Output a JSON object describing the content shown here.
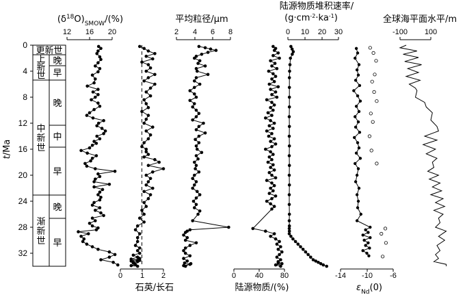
{
  "chart_data": [
    {
      "type": "line",
      "id": "oxygen_isotope",
      "xlabel": "(δ18O)SMOW/(%)",
      "xticks": [
        "12",
        "16",
        "20"
      ],
      "xlim": [
        12,
        22
      ],
      "x": [
        17.6,
        18,
        17.5,
        17.3,
        17.8,
        18,
        17.5,
        17,
        17.8,
        17.5,
        16.5,
        17,
        16.8,
        15.6,
        17.5,
        16.6,
        17.5,
        17,
        16.3,
        17.5,
        17.8,
        16.8,
        16,
        15.5,
        16.6,
        18.5,
        17.6,
        17.3,
        18.2,
        18.8,
        18.5,
        17.3,
        17.8,
        16.8,
        17.2,
        16.5,
        16,
        14.5,
        15.6,
        17.2,
        16.5,
        16.2,
        15.2,
        15.5,
        17,
        20.5,
        17.5,
        17.8,
        17,
        16.8,
        19.5,
        16.8,
        18.3,
        17.8,
        17.5,
        18,
        17.8,
        16.8,
        16.5,
        17.8,
        17,
        18,
        18.5,
        16.5,
        17,
        16,
        16.5,
        17.5,
        17.2,
        14,
        15.8,
        14.5,
        15,
        14.8,
        15.5,
        16.5,
        17.5,
        19.5,
        20.5,
        19.5,
        18,
        20.2,
        21
      ],
      "y": [
        0.2,
        0.5,
        0.9,
        1.3,
        1.8,
        2.2,
        2.7,
        3.2,
        3.6,
        4.1,
        4.6,
        5.2,
        5.8,
        6.3,
        6.8,
        7.2,
        7.6,
        8,
        8.4,
        8.9,
        9.4,
        9.9,
        10.4,
        10.8,
        11.2,
        11.6,
        12,
        12.4,
        12.8,
        13.2,
        13.6,
        14,
        14.4,
        14.8,
        15.1,
        15.4,
        15.8,
        16.2,
        16.6,
        17,
        17.4,
        17.8,
        18.2,
        18.6,
        19,
        19.4,
        19.8,
        20.2,
        20.6,
        21,
        21.4,
        21.8,
        22.2,
        22.6,
        23,
        23.4,
        23.8,
        24.2,
        24.6,
        25,
        25.4,
        25.8,
        26.2,
        26.6,
        27,
        27.4,
        27.8,
        28.1,
        28.4,
        28.7,
        29,
        29.4,
        29.8,
        30.2,
        30.6,
        31,
        31.4,
        31.8,
        32.2,
        32.6,
        33,
        33.4,
        33.8
      ]
    },
    {
      "type": "line",
      "id": "quartz_feldspar",
      "xlabel": "石英/长石",
      "xticks": [
        "0",
        "1",
        "2"
      ],
      "xlim": [
        0,
        2.6
      ],
      "reference_line_x": 1,
      "x": [
        0.9,
        1.1,
        1.3,
        1.6,
        1.2,
        1.5,
        1,
        1.3,
        1.4,
        1.2,
        1.6,
        1.3,
        1.1,
        1.6,
        1.4,
        1.2,
        1.4,
        1.1,
        1.2,
        1.3,
        1,
        1.3,
        1.2,
        1.1,
        1.5,
        1.2,
        1.4,
        1.3,
        1.1,
        1,
        1.2,
        1.2,
        1.3,
        1.1,
        1.6,
        1.8,
        1.3,
        2,
        1.5,
        1.2,
        1.4,
        1.3,
        1.2,
        1.5,
        1.1,
        1.4,
        1.3,
        1.1,
        1.2,
        1,
        1.1,
        0.9,
        1.1,
        0.8,
        0.7,
        0.9,
        0.8,
        0.8,
        0.7,
        0.9,
        0.8,
        0.9,
        0.6,
        0.8,
        0.5,
        0.9,
        0.8,
        0.6,
        0.7,
        0.5,
        0.8,
        0.6,
        0.9,
        0.5
      ],
      "y": [
        0.2,
        0.5,
        0.9,
        1.3,
        1.7,
        2.1,
        2.6,
        3,
        3.5,
        4,
        4.5,
        5,
        5.5,
        6,
        6.6,
        7.2,
        7.8,
        8.4,
        9,
        9.6,
        10.2,
        10.8,
        11.4,
        12,
        12.6,
        13.2,
        13.8,
        14.4,
        15,
        15.6,
        16,
        16.4,
        16.8,
        17.2,
        17.6,
        18,
        18.5,
        19,
        19.5,
        20,
        20.5,
        21,
        21.5,
        22,
        22.5,
        23,
        23.6,
        24.2,
        24.8,
        25.4,
        26,
        26.6,
        27.2,
        27.8,
        28.4,
        29,
        29.6,
        30.2,
        30.8,
        31.2,
        31.6,
        32,
        32.3,
        32.6,
        32.9,
        33.1,
        33.3,
        33.5,
        33.7,
        33.9,
        34,
        33.4,
        32.8,
        33.2
      ]
    },
    {
      "type": "line",
      "id": "grain_size",
      "xlabel": "平均粒径/μm",
      "xticks": [
        "2",
        "4",
        "6",
        "8"
      ],
      "xlim": [
        2,
        8
      ],
      "x": [
        4.5,
        5.2,
        5.8,
        6.4,
        5.5,
        4.8,
        4.2,
        4,
        4.6,
        4.4,
        5.2,
        4.2,
        4.3,
        5.5,
        4.2,
        4,
        4.6,
        4,
        3.5,
        4,
        4.2,
        3.5,
        4,
        3.8,
        4.2,
        4.5,
        4.2,
        3.8,
        5,
        4.5,
        4.2,
        5.2,
        4.5,
        4.1,
        4.5,
        4.2,
        4.3,
        4.8,
        4.2,
        4.4,
        4,
        4.2,
        4.1,
        4.5,
        4,
        3.8,
        4.2,
        4,
        3.8,
        4.3,
        4.6,
        4.2,
        3.9,
        4.2,
        4,
        4.6,
        4.4,
        3.8,
        7.8,
        3.5,
        3.2,
        3,
        2.8,
        3.2,
        3,
        4.2,
        3.5,
        3,
        2.8,
        3,
        3.5,
        2.8,
        3.2,
        2.9,
        3.5,
        2.8,
        3,
        3.6
      ],
      "y": [
        0.2,
        0.4,
        0.6,
        0.8,
        1.1,
        1.4,
        1.7,
        2,
        2.4,
        2.8,
        3.2,
        3.6,
        4,
        4.5,
        5,
        5.5,
        6,
        6.5,
        7,
        7.5,
        8,
        8.5,
        9,
        9.5,
        10,
        10.5,
        11,
        11.5,
        12,
        12.5,
        13,
        13.5,
        14,
        14.5,
        15,
        15.5,
        16,
        16.5,
        17,
        17.5,
        18,
        18.5,
        19,
        19.5,
        20,
        20.5,
        21,
        21.5,
        22,
        22.5,
        23,
        23.5,
        24,
        24.5,
        25,
        25.5,
        26,
        27,
        28,
        28.4,
        28.6,
        28.8,
        29.2,
        29.6,
        30,
        30.4,
        30.8,
        31.2,
        31.6,
        32,
        32.4,
        32.8,
        33.2,
        33.5,
        33.7,
        33.9,
        34,
        33.6
      ]
    },
    {
      "type": "line",
      "id": "terrigenous_material",
      "xlabel": "陆源物质/(%)",
      "xticks": [
        "0",
        "40",
        "80"
      ],
      "xlim": [
        0,
        90
      ],
      "x": [
        62,
        66,
        64,
        70,
        62,
        72,
        58,
        65,
        60,
        68,
        55,
        62,
        66,
        60,
        64,
        56,
        70,
        58,
        66,
        60,
        68,
        52,
        60,
        64,
        58,
        62,
        54,
        60,
        50,
        58,
        64,
        56,
        62,
        52,
        60,
        55,
        64,
        58,
        66,
        60,
        50,
        58,
        62,
        56,
        60,
        54,
        62,
        58,
        64,
        56,
        60,
        66,
        52,
        60,
        64,
        58,
        62,
        56,
        66,
        60,
        52,
        58,
        64,
        60,
        30,
        50,
        64,
        58,
        66,
        72,
        68,
        74,
        70,
        76,
        72,
        68,
        74,
        70,
        76,
        66,
        74,
        70
      ],
      "y": [
        0.2,
        0.5,
        0.8,
        1.2,
        1.6,
        2,
        2.4,
        2.8,
        3.2,
        3.6,
        4,
        4.4,
        4.8,
        5.2,
        5.6,
        6,
        6.4,
        6.8,
        7.2,
        7.6,
        8,
        8.4,
        8.8,
        9.2,
        9.6,
        10,
        10.4,
        10.8,
        11.2,
        11.6,
        12,
        12.4,
        12.8,
        13.2,
        13.6,
        14,
        14.4,
        14.8,
        15.2,
        15.6,
        16,
        16.4,
        16.8,
        17.2,
        17.6,
        18,
        18.4,
        18.8,
        19.2,
        19.6,
        20,
        20.4,
        20.8,
        21.2,
        21.6,
        22,
        22.4,
        22.8,
        23.2,
        23.6,
        24,
        24.4,
        24.8,
        25.2,
        28.2,
        28.6,
        29,
        29.4,
        29.8,
        30.2,
        30.6,
        31,
        31.4,
        31.8,
        32.2,
        32.6,
        33,
        33.3,
        33.6,
        33.8,
        34,
        33.5
      ]
    },
    {
      "type": "line",
      "id": "accumulation_rate",
      "xlabel": "陆源物质堆积速率/(g·cm-2·ka-1)",
      "xticks": [
        "0",
        "10",
        "20",
        "30"
      ],
      "xlim": [
        0,
        30
      ],
      "x": [
        1.8,
        2.5,
        3.2,
        2.6,
        1.5,
        1.2,
        1,
        0.9,
        0.9,
        0.9,
        0.9,
        0.8,
        0.9,
        0.8,
        0.9,
        0.8,
        0.9,
        0.8,
        0.9,
        0.8,
        0.8,
        0.9,
        0.8,
        0.9,
        0.8,
        0.9,
        0.8,
        1.8,
        3,
        4.5,
        6,
        7.5,
        9,
        10.5,
        12,
        13.5,
        15,
        16.5,
        18,
        19.5,
        21,
        23
      ],
      "y": [
        0.2,
        0.6,
        1,
        1.4,
        2,
        3,
        4,
        5,
        6.5,
        8,
        9.5,
        11,
        12.5,
        14,
        15.5,
        17,
        18.5,
        20,
        21.5,
        23,
        24.5,
        26,
        27,
        27.8,
        28.2,
        28.6,
        29,
        29.4,
        29.8,
        30.2,
        30.6,
        31,
        31.4,
        31.8,
        32.2,
        32.6,
        33,
        33.2,
        33.4,
        33.6,
        33.8,
        34
      ]
    },
    {
      "type": "scatter",
      "id": "epsilon_nd",
      "xlabel": "εNd(0)",
      "xticks": [
        "-14",
        "-10",
        "-6"
      ],
      "xlim": [
        -14,
        -6
      ],
      "series": [
        {
          "marker": "filled",
          "line": true,
          "x": [
            -11.6,
            -11.4,
            -11.8,
            -11.2,
            -11.5,
            -11.3,
            -11.7,
            -11.1,
            -12,
            -11.4,
            -11,
            -11.6,
            -11.2,
            -11.8,
            -11.3,
            -11.7,
            -11.1,
            -11.9,
            -11.4,
            -11.2,
            -11.6,
            -11,
            -11.8,
            -11.3,
            -11.5,
            -11.7,
            -11.2,
            -11.5,
            -11.3,
            -11.4,
            -10.9,
            -11.5,
            -9.5,
            -10.2,
            -9.8,
            -10.6,
            -9.5,
            -10.4,
            -9.8,
            -10.2,
            -9.6,
            -10.6,
            -10,
            -9.7
          ],
          "y": [
            0.5,
            1.2,
            2,
            3,
            3.8,
            4.6,
            5.4,
            6.2,
            7,
            7.8,
            8.6,
            9.4,
            10.2,
            11,
            11.8,
            12.6,
            13.4,
            14.2,
            15,
            15.8,
            16.6,
            17.4,
            18.2,
            19,
            20,
            21,
            22,
            23,
            24,
            25,
            26,
            27,
            28,
            28.4,
            28.8,
            29.2,
            29.6,
            30,
            30.4,
            30.8,
            31.2,
            31.6,
            32,
            32.4
          ]
        },
        {
          "marker": "open",
          "line": false,
          "x": [
            -9.5,
            -9,
            -8.6,
            -8.8,
            -9.2,
            -8.9,
            -8.5,
            -9.4,
            -9.1,
            -9.6,
            -9.3,
            -8.5,
            -7.2,
            -7.8,
            -7.1,
            -7.6
          ],
          "y": [
            0.4,
            1.2,
            2.4,
            4.5,
            5.6,
            7.2,
            8.6,
            10.5,
            11.8,
            14,
            16.2,
            18.2,
            28.2,
            29,
            30.4,
            32.5
          ]
        }
      ]
    },
    {
      "type": "line",
      "id": "sea_level",
      "xlabel": "全球海平面水平/m",
      "xticks": [
        "-100",
        "100"
      ],
      "xlim": [
        -150,
        250
      ],
      "x": [
        -60,
        -100,
        10,
        -80,
        20,
        -70,
        40,
        -50,
        20,
        -60,
        30,
        -40,
        0,
        10,
        0,
        60,
        70,
        110,
        100,
        140,
        150,
        60,
        140,
        50,
        130,
        70,
        140,
        110,
        120,
        80,
        150,
        90,
        160,
        110,
        170,
        100,
        180,
        130,
        190,
        120,
        180,
        150,
        160,
        130,
        200,
        150,
        190,
        140,
        160,
        130,
        150,
        120,
        200,
        200
      ],
      "y": [
        0,
        0.4,
        0.9,
        1.4,
        1.9,
        2.5,
        3,
        3.6,
        4.2,
        4.8,
        5.4,
        6,
        6.6,
        7,
        8,
        8.8,
        9.5,
        10.4,
        11.5,
        12.5,
        13.2,
        14,
        14.6,
        15.3,
        16,
        16.7,
        17.4,
        18,
        18.8,
        19.4,
        20,
        20.6,
        21.2,
        21.8,
        22.4,
        23,
        23.6,
        24.2,
        24.8,
        25.4,
        26,
        26.6,
        27.3,
        28,
        28.6,
        29.4,
        30,
        30.8,
        31.6,
        32.2,
        32.8,
        33.3,
        33.7,
        34
      ]
    }
  ],
  "shared_axis": {
    "label": "t/Ma",
    "ticks": [
      "0",
      "4",
      "8",
      "12",
      "16",
      "20",
      "24",
      "28",
      "32"
    ],
    "ylim": [
      0,
      34
    ]
  },
  "epochs": {
    "pleistocene": "更新世",
    "pliocene": "上新世",
    "pliocene_late": "晚",
    "pliocene_early": "早",
    "miocene": "中新世",
    "miocene_late": "晚",
    "miocene_middle": "中",
    "miocene_early": "早",
    "oligocene": "渐新世",
    "oligocene_late": "晚",
    "oligocene_early": "早"
  }
}
